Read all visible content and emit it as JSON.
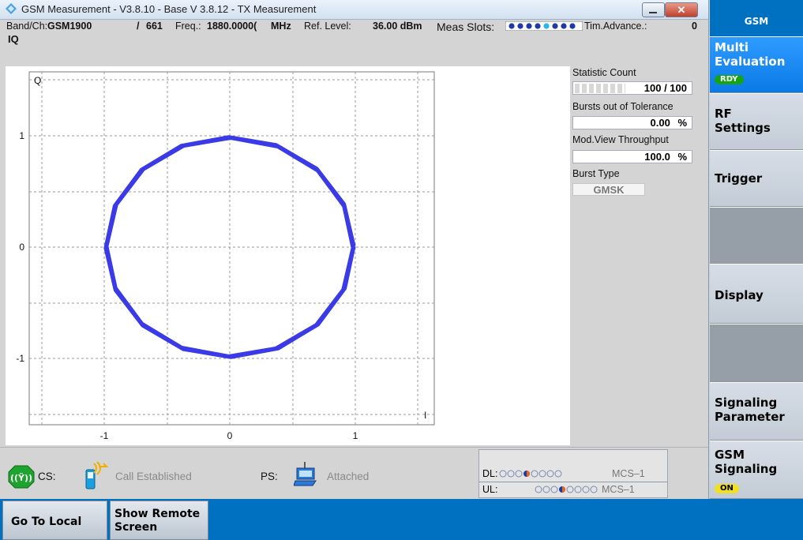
{
  "window": {
    "title": "GSM Measurement  - V3.8.10 - Base V 3.8.12 - TX Measurement",
    "close_glyph": "✕"
  },
  "info": {
    "band_label": "Band/Ch:",
    "band_value": "GSM1900",
    "sep": "/",
    "channel": "661",
    "freq_label": "Freq.:",
    "freq_value": "1880.0000(",
    "freq_unit": "MHz",
    "ref_label": "Ref. Level:",
    "ref_value": "36.00 dBm",
    "meas_label": "Meas Slots:",
    "tim_label": "Tim.Advance.:",
    "tim_value": "0"
  },
  "view_label": "IQ",
  "plot": {
    "y_label": "Q",
    "x_label": "I",
    "x_ticks": [
      "-1",
      "0",
      "1"
    ],
    "y_ticks": [
      "1",
      "0",
      "-1"
    ],
    "trace_color": "#3a3ae6"
  },
  "stats": {
    "statistic_count_label": "Statistic Count",
    "statistic_count_value": "100 / 100",
    "bursts_label": "Bursts out of Tolerance",
    "bursts_value": "0.00",
    "bursts_unit": "%",
    "throughput_label": "Mod.View Throughput",
    "throughput_value": "100.0",
    "throughput_unit": "%",
    "burst_type_label": "Burst Type",
    "burst_type_value": "GMSK"
  },
  "status": {
    "cs_label": "CS:",
    "cs_state": "Call Established",
    "ps_label": "PS:",
    "ps_state": "Attached",
    "dl_label": "DL:",
    "dl_mcs": "MCS–1",
    "ul_label": "UL:",
    "ul_mcs": "MCS–1"
  },
  "softkeys": {
    "header": "GSM",
    "multi_evaluation": "Multi Evaluation",
    "multi_evaluation_badge": "RDY",
    "rf_settings": "RF Settings",
    "trigger": "Trigger",
    "display": "Display",
    "signaling_parameter": "Signaling Parameter",
    "gsm_signaling": "GSM Signaling",
    "gsm_signaling_badge": "ON"
  },
  "bottom": {
    "go_to_local": "Go To Local",
    "show_remote_screen": "Show Remote Screen"
  },
  "colors": {
    "accent_blue": "#0070c0",
    "rdy_green": "#17a317",
    "on_yellow": "#f0e020"
  }
}
